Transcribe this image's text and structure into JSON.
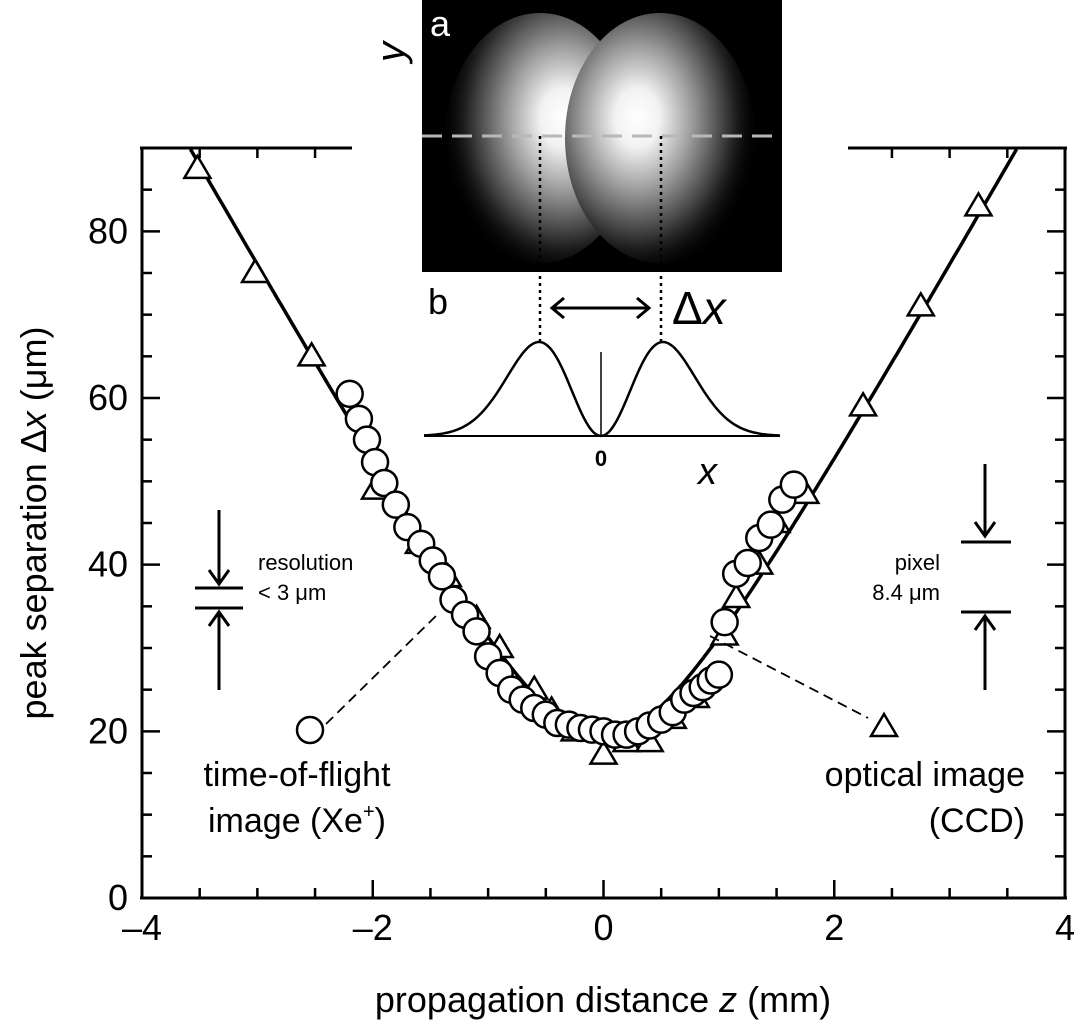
{
  "chart_data": {
    "type": "scatter",
    "xlabel_pre": "propagation distance ",
    "xlabel_var": "z",
    "xlabel_unit": " (mm)",
    "ylabel_pre": "peak separation Δ",
    "ylabel_var": "x",
    "ylabel_unit": " (μm)",
    "xlim": [
      -4,
      4
    ],
    "ylim": [
      0,
      90
    ],
    "xticks": [
      -4,
      -2,
      0,
      2,
      4
    ],
    "xtick_labels": [
      "–4",
      "–2",
      "0",
      "2",
      "4"
    ],
    "yticks": [
      0,
      20,
      40,
      60,
      80
    ],
    "ytick_labels": [
      "0",
      "20",
      "40",
      "60",
      "80"
    ],
    "series": [
      {
        "marker": "circle",
        "label_line1": "time-of-flight",
        "label_line2_pre": "image (Xe",
        "label_line2_sup": "+",
        "label_line2_post": ")",
        "x": [
          -2.2,
          -2.12,
          -2.05,
          -1.98,
          -1.9,
          -1.8,
          -1.7,
          -1.58,
          -1.48,
          -1.4,
          -1.3,
          -1.2,
          -1.1,
          -1.0,
          -0.9,
          -0.8,
          -0.7,
          -0.6,
          -0.5,
          -0.4,
          -0.3,
          -0.2,
          -0.1,
          0.0,
          0.1,
          0.2,
          0.3,
          0.4,
          0.5,
          0.6,
          0.7,
          0.78,
          0.86,
          0.93,
          1.0,
          1.05,
          1.15,
          1.25,
          1.35,
          1.45,
          1.55,
          1.65
        ],
        "y": [
          60.5,
          57.5,
          55.0,
          52.3,
          49.8,
          47.2,
          44.5,
          42.5,
          40.5,
          38.6,
          35.8,
          34.0,
          32.0,
          29.0,
          27.0,
          25.0,
          23.8,
          22.8,
          22.0,
          21.0,
          20.8,
          20.4,
          20.2,
          20.0,
          19.6,
          19.6,
          20.0,
          20.7,
          21.4,
          22.3,
          23.8,
          24.6,
          25.3,
          26.1,
          26.8,
          33.1,
          38.9,
          40.2,
          43.2,
          44.8,
          47.8,
          49.6
        ]
      },
      {
        "marker": "triangle",
        "label_line1": "optical image",
        "label_line2": "(CCD)",
        "x": [
          -3.52,
          -3.02,
          -2.53,
          -1.98,
          -1.6,
          -1.35,
          -1.1,
          -0.9,
          -0.6,
          -0.45,
          -0.25,
          0.0,
          0.2,
          0.4,
          0.6,
          0.8,
          1.05,
          1.15,
          1.35,
          1.5,
          1.75,
          2.25,
          2.75,
          3.25
        ],
        "y": [
          87.5,
          75.0,
          65.0,
          49.0,
          42.5,
          38.5,
          33.5,
          30.0,
          25.0,
          22.5,
          20.0,
          17.2,
          18.7,
          18.7,
          21.5,
          24.0,
          31.5,
          36.0,
          40.0,
          45.0,
          48.5,
          59.0,
          71.0,
          83.0
        ]
      }
    ],
    "fit_curve": {
      "x0": 0.0,
      "a": 19.5,
      "b": 24.5
    },
    "annotations": {
      "resolution_line1": "resolution",
      "resolution_line2": "< 3 μm",
      "pixel_line1": "pixel",
      "pixel_line2": "8.4 μm"
    },
    "inset": {
      "panel_a_label": "a",
      "panel_b_label": "b",
      "y_axis_label": "y",
      "x_axis_label": "x",
      "zero_label": "0",
      "delta_label_pre": "Δ",
      "delta_label_var": "x"
    }
  }
}
